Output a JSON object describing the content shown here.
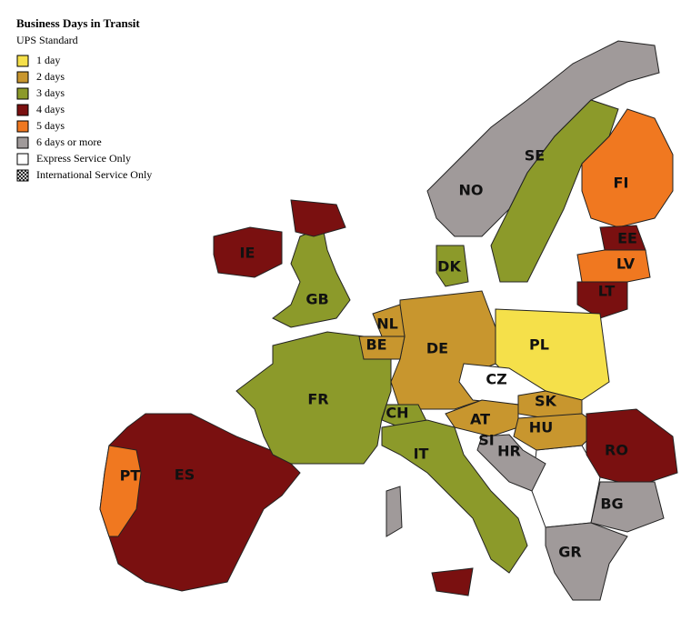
{
  "legend": {
    "title": "Business Days in Transit",
    "subtitle": "UPS Standard",
    "items": [
      {
        "label": "1 day",
        "color": "#f5e04a"
      },
      {
        "label": "2 days",
        "color": "#c8962e"
      },
      {
        "label": "3 days",
        "color": "#8c9a2a"
      },
      {
        "label": "4 days",
        "color": "#7a1010"
      },
      {
        "label": "5 days",
        "color": "#f07820"
      },
      {
        "label": "6 days or more",
        "color": "#a09a9a"
      },
      {
        "label": "Express Service Only",
        "color": "#ffffff"
      },
      {
        "label": "International Service Only",
        "color": "hatch"
      }
    ]
  },
  "countries": [
    "NO",
    "SE",
    "FI",
    "EE",
    "LV",
    "LT",
    "DK",
    "IE",
    "GB",
    "NL",
    "BE",
    "DE",
    "PL",
    "CZ",
    "SK",
    "AT",
    "HU",
    "CH",
    "SI",
    "HR",
    "FR",
    "IT",
    "RO",
    "BG",
    "GR",
    "ES",
    "PT"
  ]
}
